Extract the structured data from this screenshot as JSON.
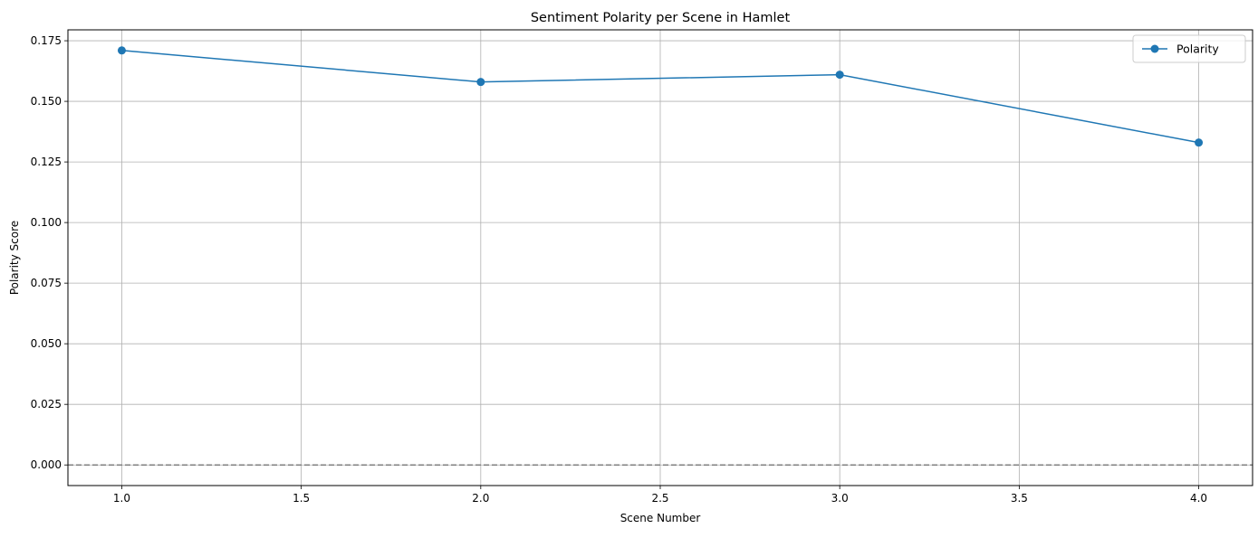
{
  "chart_data": {
    "type": "line",
    "title": "Sentiment Polarity per Scene in Hamlet",
    "xlabel": "Scene Number",
    "ylabel": "Polarity Score",
    "xlim": [
      0.85,
      4.15
    ],
    "ylim": [
      -0.0085,
      0.1795
    ],
    "xticks": [
      1.0,
      1.5,
      2.0,
      2.5,
      3.0,
      3.5,
      4.0
    ],
    "xtick_labels": [
      "1.0",
      "1.5",
      "2.0",
      "2.5",
      "3.0",
      "3.5",
      "4.0"
    ],
    "yticks": [
      0.0,
      0.025,
      0.05,
      0.075,
      0.1,
      0.125,
      0.15,
      0.175
    ],
    "ytick_labels": [
      "0.000",
      "0.025",
      "0.050",
      "0.075",
      "0.100",
      "0.125",
      "0.150",
      "0.175"
    ],
    "grid": true,
    "legend_position": "top-right",
    "series": [
      {
        "name": "Polarity",
        "color": "#1f77b4",
        "marker": "circle",
        "x": [
          1,
          2,
          3,
          4
        ],
        "y": [
          0.171,
          0.158,
          0.161,
          0.133
        ]
      }
    ],
    "reference_line": {
      "y": 0.0,
      "style": "dashed",
      "color": "#808080"
    }
  }
}
